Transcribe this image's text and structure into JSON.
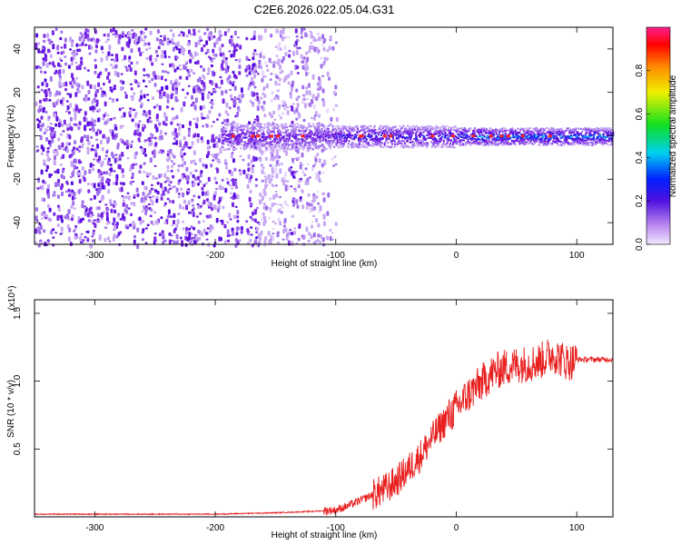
{
  "title": "C2E6.2026.022.05.04.G31",
  "chart_data": [
    {
      "type": "heatmap",
      "xlabel": "Height of straight line (km)",
      "ylabel": "Frequency (Hz)",
      "xlim": [
        -350,
        130
      ],
      "ylim": [
        -50,
        50
      ],
      "xticks": [
        -300,
        -200,
        -100,
        0,
        100
      ],
      "xtick_labels": [
        "-300",
        "-200",
        "-100",
        "0",
        "100"
      ],
      "yticks": [
        -40,
        -20,
        0,
        20,
        40
      ],
      "ytick_labels": [
        "-40",
        "-20",
        "0",
        "20",
        "40"
      ],
      "colorbar": {
        "label": "Normalized spectral amplitude",
        "range": [
          0,
          1
        ],
        "ticks": [
          0.0,
          0.2,
          0.4,
          0.6,
          0.8
        ],
        "tick_labels": [
          "0.0",
          "0.2",
          "0.4",
          "0.6",
          "0.8"
        ],
        "colormap": [
          "#ffffff",
          "#d8c0f8",
          "#7a10e8",
          "#0040ff",
          "#00d8f0",
          "#20e820",
          "#f0f000",
          "#ff8000",
          "#ff0000",
          "#ff30a0"
        ]
      },
      "regions": [
        {
          "x": [
            -350,
            -100
          ],
          "description_level": "noise",
          "amplitude": 0.08
        },
        {
          "x": [
            -195,
            -100
          ],
          "center_freq": 0,
          "bandwidth": 6,
          "amplitude": 0.35
        },
        {
          "x": [
            -100,
            0
          ],
          "center_freq": 0,
          "bandwidth": 5,
          "amplitude": 0.45
        },
        {
          "x": [
            0,
            130
          ],
          "center_freq": 0,
          "bandwidth": 4,
          "amplitude": 0.55
        }
      ],
      "grid": false
    },
    {
      "type": "line",
      "xlabel": "Height of straight line (km)",
      "ylabel": "SNR (10 * v/v)",
      "y_multiplier_label": "(x10⁴)",
      "xlim": [
        -350,
        130
      ],
      "ylim": [
        0,
        1.6
      ],
      "xticks": [
        -300,
        -200,
        -100,
        0,
        100
      ],
      "xtick_labels": [
        "-300",
        "-200",
        "-100",
        "0",
        "100"
      ],
      "yticks": [
        0.5,
        1.0,
        1.5
      ],
      "ytick_labels": [
        "0.5",
        "1.0",
        "1.5"
      ],
      "color": "#e82020",
      "series": [
        {
          "x": [
            -350,
            -300,
            -250,
            -200,
            -150,
            -120,
            -100,
            -90,
            -80,
            -70,
            -60,
            -50,
            -40,
            -30,
            -20,
            -10,
            0,
            10,
            20,
            30,
            40,
            50,
            60,
            70,
            80,
            90,
            95,
            100,
            110,
            120,
            130
          ],
          "y": [
            0.02,
            0.02,
            0.02,
            0.02,
            0.03,
            0.04,
            0.05,
            0.08,
            0.12,
            0.16,
            0.2,
            0.26,
            0.35,
            0.45,
            0.58,
            0.7,
            0.8,
            0.9,
            0.98,
            1.06,
            1.1,
            1.12,
            1.13,
            1.15,
            1.2,
            1.15,
            1.14,
            1.16,
            1.16,
            1.16,
            1.16
          ]
        }
      ],
      "grid": false
    }
  ]
}
